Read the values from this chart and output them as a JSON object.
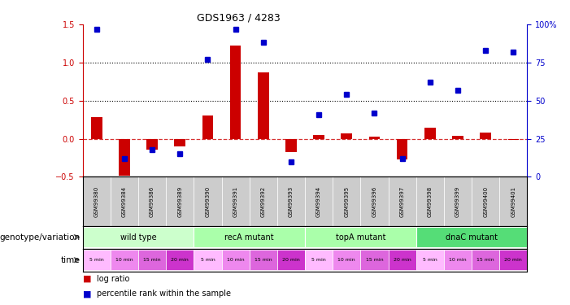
{
  "title": "GDS1963 / 4283",
  "samples": [
    "GSM99380",
    "GSM99384",
    "GSM99386",
    "GSM99389",
    "GSM99390",
    "GSM99391",
    "GSM99392",
    "GSM99393",
    "GSM99394",
    "GSM99395",
    "GSM99396",
    "GSM99397",
    "GSM99398",
    "GSM99399",
    "GSM99400",
    "GSM99401"
  ],
  "log_ratio": [
    0.28,
    -0.48,
    -0.14,
    -0.1,
    0.3,
    1.22,
    0.87,
    -0.17,
    0.05,
    0.07,
    0.03,
    -0.27,
    0.14,
    0.04,
    0.08,
    -0.02
  ],
  "percentile_rank": [
    97,
    12,
    18,
    15,
    77,
    97,
    88,
    10,
    41,
    54,
    42,
    12,
    62,
    57,
    83,
    82
  ],
  "ylim_left": [
    -0.5,
    1.5
  ],
  "ylim_right": [
    0,
    100
  ],
  "yticks_left": [
    -0.5,
    0.0,
    0.5,
    1.0,
    1.5
  ],
  "yticks_right": [
    0,
    25,
    50,
    75,
    100
  ],
  "hline_values": [
    0.5,
    1.0
  ],
  "genotype_groups": [
    {
      "label": "wild type",
      "start": 0,
      "end": 3,
      "color": "#ccffcc"
    },
    {
      "label": "recA mutant",
      "start": 4,
      "end": 7,
      "color": "#aaffaa"
    },
    {
      "label": "topA mutant",
      "start": 8,
      "end": 11,
      "color": "#aaffaa"
    },
    {
      "label": "dnaC mutant",
      "start": 12,
      "end": 15,
      "color": "#55dd77"
    }
  ],
  "time_labels": [
    "5 min",
    "10 min",
    "15 min",
    "20 min",
    "5 min",
    "10 min",
    "15 min",
    "20 min",
    "5 min",
    "10 min",
    "15 min",
    "20 min",
    "5 min",
    "10 min",
    "15 min",
    "20 min"
  ],
  "time_colors": [
    "#ffbbff",
    "#ee88ee",
    "#dd66dd",
    "#cc33cc",
    "#ffbbff",
    "#ee88ee",
    "#dd66dd",
    "#cc33cc",
    "#ffbbff",
    "#ee88ee",
    "#dd66dd",
    "#cc33cc",
    "#ffbbff",
    "#ee88ee",
    "#dd66dd",
    "#cc33cc"
  ],
  "bar_color": "#cc0000",
  "dot_color": "#0000cc",
  "zero_line_color": "#cc0000",
  "hline_color": "#000000",
  "background_color": "#ffffff",
  "axis_label_color_left": "#cc0000",
  "axis_label_color_right": "#0000cc",
  "sample_bg_color": "#cccccc"
}
